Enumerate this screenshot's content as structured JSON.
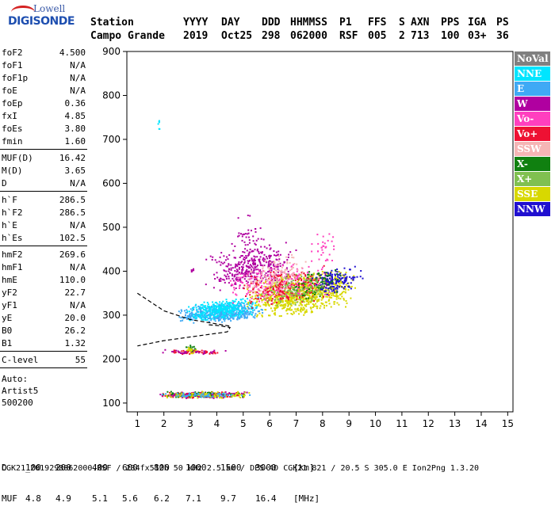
{
  "logo": {
    "line1": "Lowell",
    "line2": "DIGISONDE"
  },
  "header": {
    "labels": [
      "Station",
      "YYYY",
      "DAY",
      "DDD",
      "HHMMSS",
      "P1",
      "FFS",
      "S",
      "AXN",
      "PPS",
      "IGA",
      "PS"
    ],
    "values": [
      "Campo Grande",
      "2019",
      "Oct25",
      "298",
      "062000",
      "RSF",
      "005",
      "2",
      "713",
      "100",
      "03+",
      "36"
    ]
  },
  "params": {
    "group1": [
      {
        "name": "foF2",
        "value": "4.500"
      },
      {
        "name": "foF1",
        "value": "N/A"
      },
      {
        "name": "foF1p",
        "value": "N/A"
      },
      {
        "name": "foE",
        "value": "N/A"
      },
      {
        "name": "foEp",
        "value": "0.36"
      },
      {
        "name": "fxI",
        "value": "4.85"
      },
      {
        "name": "foEs",
        "value": "3.80"
      },
      {
        "name": "fmin",
        "value": "1.60"
      }
    ],
    "group2": [
      {
        "name": "MUF(D)",
        "value": "16.42"
      },
      {
        "name": "M(D)",
        "value": "3.65"
      },
      {
        "name": "D",
        "value": "N/A"
      }
    ],
    "group3": [
      {
        "name": "h`F",
        "value": "286.5"
      },
      {
        "name": "h`F2",
        "value": "286.5"
      },
      {
        "name": "h`E",
        "value": "N/A"
      },
      {
        "name": "h`Es",
        "value": "102.5"
      }
    ],
    "group4": [
      {
        "name": "hmF2",
        "value": "269.6"
      },
      {
        "name": "hmF1",
        "value": "N/A"
      },
      {
        "name": "hmE",
        "value": "110.0"
      },
      {
        "name": "yF2",
        "value": "22.7"
      },
      {
        "name": "yF1",
        "value": "N/A"
      },
      {
        "name": "yE",
        "value": "20.0"
      },
      {
        "name": "B0",
        "value": "26.2"
      },
      {
        "name": "B1",
        "value": "1.32"
      }
    ],
    "clevel": {
      "name": "C-level",
      "value": "55"
    },
    "auto_lines": [
      "Auto:",
      "Artist5",
      "500200"
    ]
  },
  "legend": [
    {
      "label": "NoVal",
      "color": "#808080"
    },
    {
      "label": "NNE",
      "color": "#00e5ff"
    },
    {
      "label": "E",
      "color": "#3fa9f5"
    },
    {
      "label": "W",
      "color": "#b000a0"
    },
    {
      "label": "Vo-",
      "color": "#ff3fbf"
    },
    {
      "label": "Vo+",
      "color": "#ee1133"
    },
    {
      "label": "SSW",
      "color": "#f5b5b5"
    },
    {
      "label": "X-",
      "color": "#108010"
    },
    {
      "label": "X+",
      "color": "#80c050"
    },
    {
      "label": "SSE",
      "color": "#d8d800"
    },
    {
      "label": "NNW",
      "color": "#2010d0"
    }
  ],
  "bottom": {
    "d_label": "D",
    "d_values": [
      "100",
      "200",
      "400",
      "600",
      "800",
      "1000",
      "1500",
      "3000",
      "[km]"
    ],
    "muf_label": "MUF",
    "muf_values": [
      "4.8",
      "4.9",
      "5.1",
      "5.6",
      "6.2",
      "7.1",
      "9.7",
      "16.4",
      "[MHz]"
    ]
  },
  "footer": "CGK21_2019298062000.RSF / 284fx512h 50 kHz 2.5 km / DPS-4D CGK21 821 / 20.5 S 305.0 E Ion2Png 1.3.20",
  "chart_data": {
    "type": "scatter",
    "title": "",
    "xlabel": "",
    "ylabel": "",
    "xlim": [
      0.6,
      15.2
    ],
    "ylim": [
      80,
      900
    ],
    "x_ticks": [
      1,
      2,
      3,
      4,
      5,
      6,
      7,
      8,
      9,
      10,
      11,
      12,
      13,
      14,
      15
    ],
    "y_ticks": [
      100,
      200,
      300,
      400,
      500,
      600,
      700,
      800,
      900
    ],
    "clusters": [
      {
        "series": "SSE",
        "x": [
          5.0,
          9.3
        ],
        "y": [
          300,
          400
        ],
        "n": 900
      },
      {
        "series": "E",
        "x": [
          2.5,
          5.8
        ],
        "y": [
          285,
          330
        ],
        "n": 500
      },
      {
        "series": "NNE",
        "x": [
          2.7,
          5.6
        ],
        "y": [
          290,
          340
        ],
        "n": 300
      },
      {
        "series": "W",
        "x": [
          3.5,
          7.0
        ],
        "y": [
          360,
          460
        ],
        "n": 350
      },
      {
        "series": "Vo-",
        "x": [
          4.3,
          8.5
        ],
        "y": [
          330,
          420
        ],
        "n": 250
      },
      {
        "series": "Vo+",
        "x": [
          4.6,
          8.5
        ],
        "y": [
          320,
          410
        ],
        "n": 200
      },
      {
        "series": "SSW",
        "x": [
          5.0,
          7.5
        ],
        "y": [
          330,
          440
        ],
        "n": 150
      },
      {
        "series": "NNW",
        "x": [
          7.5,
          9.5
        ],
        "y": [
          350,
          410
        ],
        "n": 160
      },
      {
        "series": "X-",
        "x": [
          6.5,
          8.8
        ],
        "y": [
          340,
          410
        ],
        "n": 80
      },
      {
        "series": "X+",
        "x": [
          5.5,
          8.5
        ],
        "y": [
          320,
          400
        ],
        "n": 100
      },
      {
        "series": "W",
        "x": [
          4.5,
          5.8
        ],
        "y": [
          420,
          540
        ],
        "n": 45
      },
      {
        "series": "Vo-",
        "x": [
          7.5,
          8.5
        ],
        "y": [
          420,
          490
        ],
        "n": 30
      },
      {
        "series": "Vo+",
        "x": [
          1.8,
          5.2
        ],
        "y": [
          113,
          127
        ],
        "n": 180
      },
      {
        "series": "W",
        "x": [
          1.8,
          5.2
        ],
        "y": [
          112,
          128
        ],
        "n": 120
      },
      {
        "series": "X-",
        "x": [
          1.8,
          5.2
        ],
        "y": [
          113,
          128
        ],
        "n": 80
      },
      {
        "series": "SSE",
        "x": [
          1.8,
          5.4
        ],
        "y": [
          112,
          128
        ],
        "n": 100
      },
      {
        "series": "E",
        "x": [
          1.8,
          5.3
        ],
        "y": [
          114,
          126
        ],
        "n": 60
      },
      {
        "series": "Vo+",
        "x": [
          1.8,
          4.4
        ],
        "y": [
          212,
          224
        ],
        "n": 50
      },
      {
        "series": "W",
        "x": [
          1.8,
          4.4
        ],
        "y": [
          212,
          224
        ],
        "n": 30
      },
      {
        "series": "X-",
        "x": [
          2.8,
          3.2
        ],
        "y": [
          215,
          235
        ],
        "n": 15
      },
      {
        "series": "SSE",
        "x": [
          2.8,
          3.2
        ],
        "y": [
          213,
          230
        ],
        "n": 15
      },
      {
        "series": "NNE",
        "x": [
          1.75,
          1.85
        ],
        "y": [
          705,
          775
        ],
        "n": 6
      },
      {
        "series": "W",
        "x": [
          2.9,
          3.2
        ],
        "y": [
          395,
          410
        ],
        "n": 6
      }
    ],
    "profile_dashed": {
      "x": [
        1.0,
        2.0,
        3.0,
        4.0,
        4.5
      ],
      "y": [
        350,
        310,
        290,
        280,
        275
      ]
    },
    "profile_solid": {
      "x": [
        3.7,
        4.1,
        4.5,
        4.4,
        2.0,
        1.0
      ],
      "y": [
        278,
        276,
        272,
        262,
        242,
        230
      ]
    }
  }
}
